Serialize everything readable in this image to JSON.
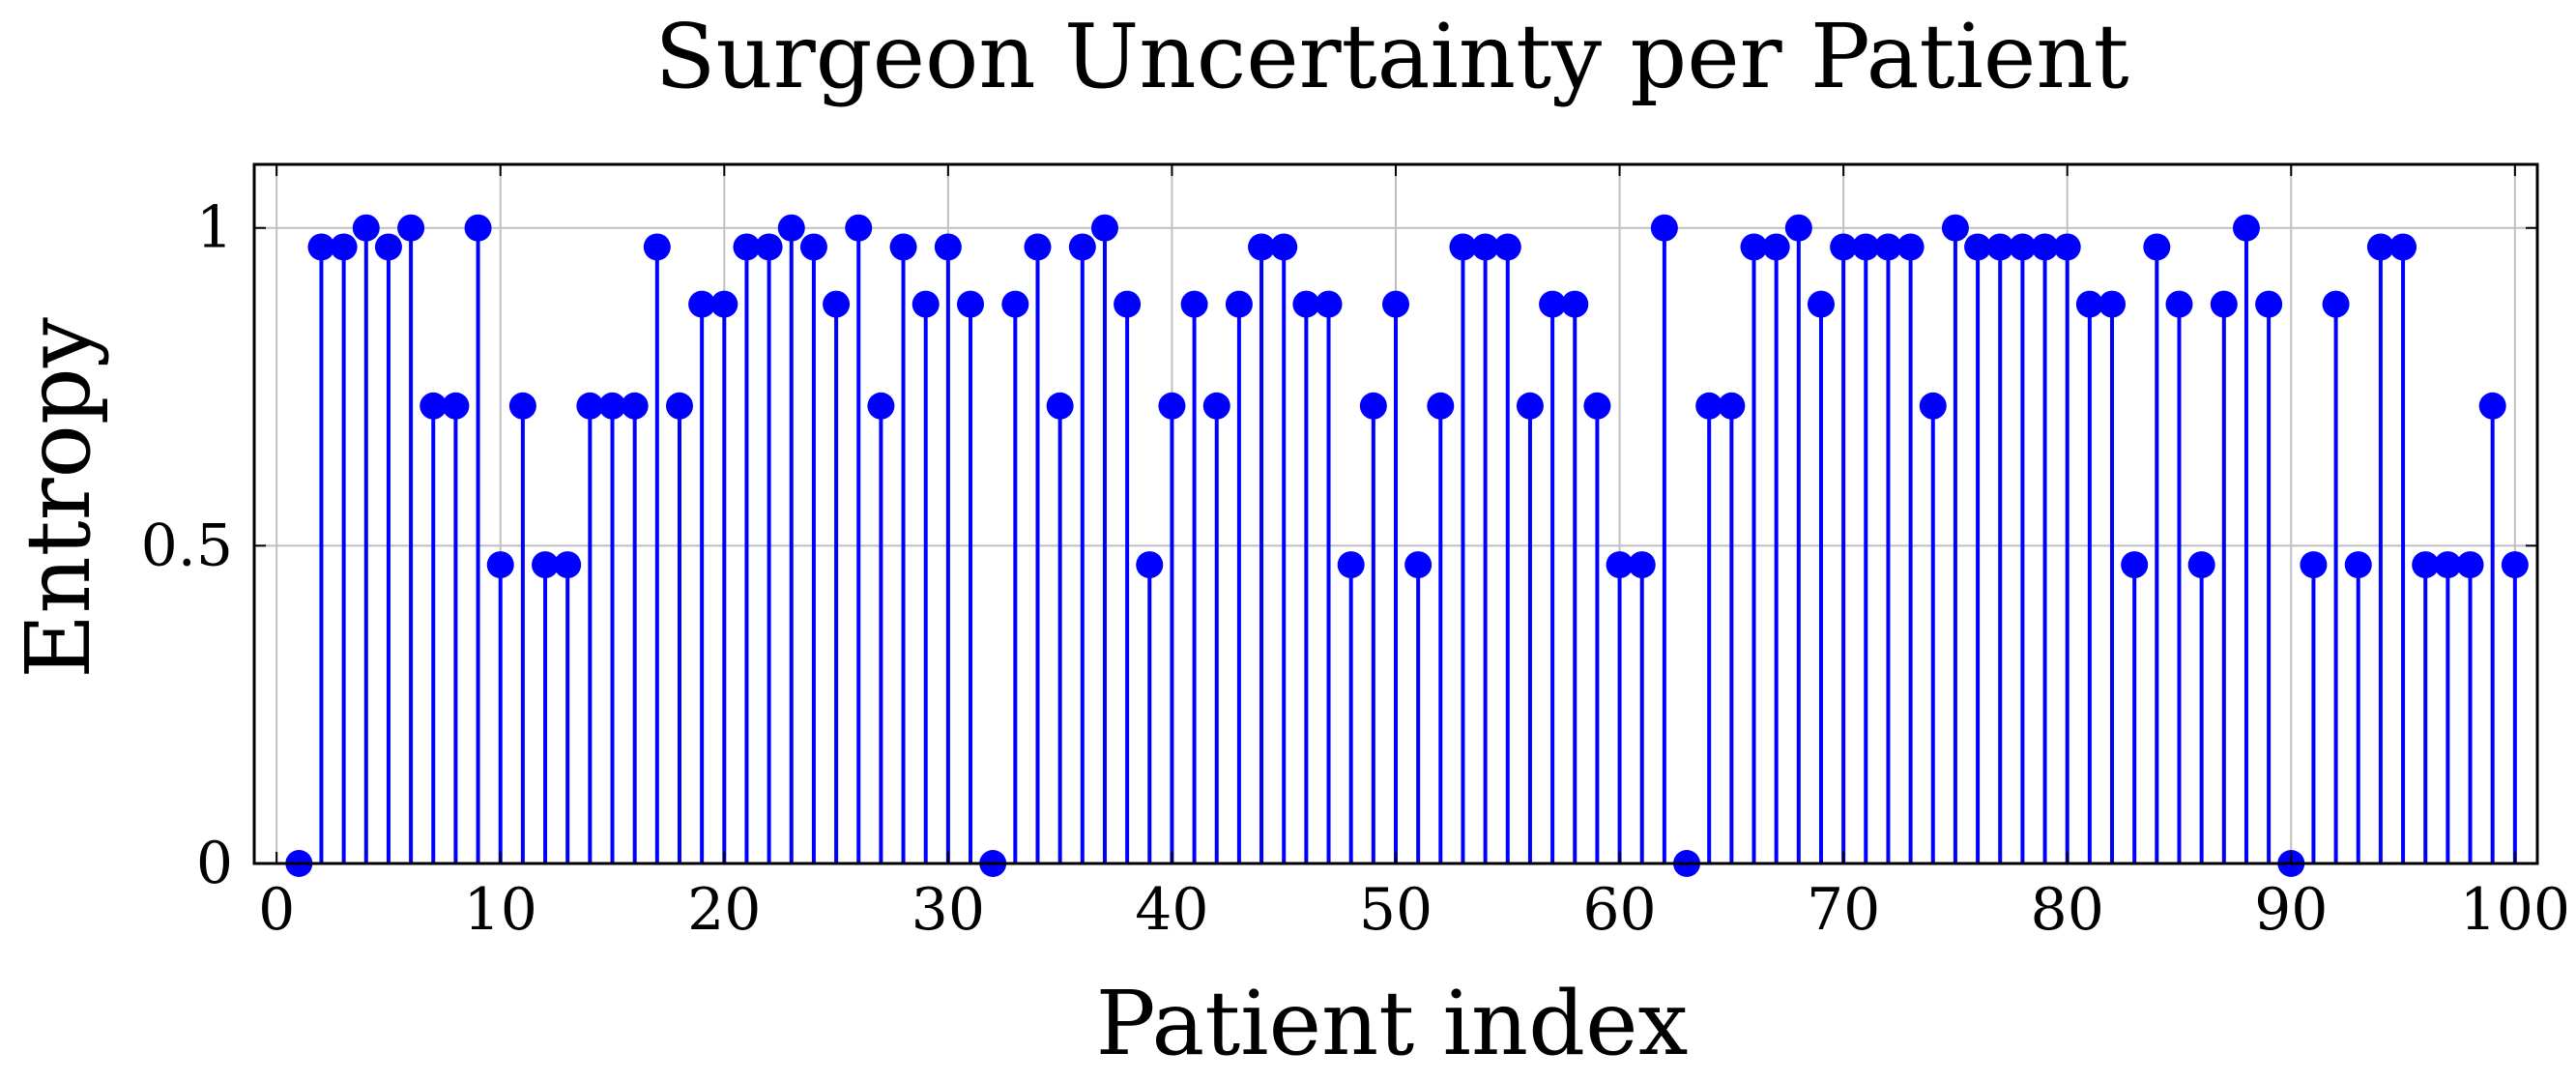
{
  "colors": {
    "series": "#0000ff",
    "grid": "#bfbfbf",
    "axis": "#000000",
    "background": "#ffffff"
  },
  "chart_data": {
    "type": "stem",
    "title": "Surgeon Uncertainty per Patient",
    "xlabel": "Patient index",
    "ylabel": "Entropy",
    "xlim": [
      -1,
      101
    ],
    "ylim": [
      0,
      1.1
    ],
    "grid": true,
    "xticks": [
      0,
      10,
      20,
      30,
      40,
      50,
      60,
      70,
      80,
      90,
      100
    ],
    "xtick_labels": [
      "0",
      "10",
      "20",
      "30",
      "40",
      "50",
      "60",
      "70",
      "80",
      "90",
      "100"
    ],
    "yticks": [
      0,
      0.5,
      1
    ],
    "ytick_labels": [
      "0",
      "0.5",
      "1"
    ],
    "series": [
      {
        "marker": "circle",
        "x": [
          1,
          2,
          3,
          4,
          5,
          6,
          7,
          8,
          9,
          10,
          11,
          12,
          13,
          14,
          15,
          16,
          17,
          18,
          19,
          20,
          21,
          22,
          23,
          24,
          25,
          26,
          27,
          28,
          29,
          30,
          31,
          32,
          33,
          34,
          35,
          36,
          37,
          38,
          39,
          40,
          41,
          42,
          43,
          44,
          45,
          46,
          47,
          48,
          49,
          50,
          51,
          52,
          53,
          54,
          55,
          56,
          57,
          58,
          59,
          60,
          61,
          62,
          63,
          64,
          65,
          66,
          67,
          68,
          69,
          70,
          71,
          72,
          73,
          74,
          75,
          76,
          77,
          78,
          79,
          80,
          81,
          82,
          83,
          84,
          85,
          86,
          87,
          88,
          89,
          90,
          91,
          92,
          93,
          94,
          95,
          96,
          97,
          98,
          99,
          100
        ],
        "values": [
          0,
          0.97,
          0.97,
          1,
          0.97,
          1,
          0.72,
          0.72,
          1,
          0.47,
          0.72,
          0.47,
          0.47,
          0.72,
          0.72,
          0.72,
          0.97,
          0.72,
          0.88,
          0.88,
          0.97,
          0.97,
          1,
          0.97,
          0.88,
          1,
          0.72,
          0.97,
          0.88,
          0.97,
          0.88,
          0,
          0.88,
          0.97,
          0.72,
          0.97,
          1,
          0.88,
          0.47,
          0.72,
          0.88,
          0.72,
          0.88,
          0.97,
          0.97,
          0.88,
          0.88,
          0.47,
          0.72,
          0.88,
          0.47,
          0.72,
          0.97,
          0.97,
          0.97,
          0.72,
          0.88,
          0.88,
          0.72,
          0.47,
          0.47,
          1,
          0,
          0.72,
          0.72,
          0.97,
          0.97,
          1,
          0.88,
          0.97,
          0.97,
          0.97,
          0.97,
          0.72,
          1,
          0.97,
          0.97,
          0.97,
          0.97,
          0.97,
          0.88,
          0.88,
          0.47,
          0.97,
          0.88,
          0.47,
          0.88,
          1,
          0.88,
          0,
          0.47,
          0.88,
          0.47,
          0.97,
          0.97,
          0.47,
          0.47,
          0.47,
          0.72,
          0.47
        ]
      }
    ]
  }
}
